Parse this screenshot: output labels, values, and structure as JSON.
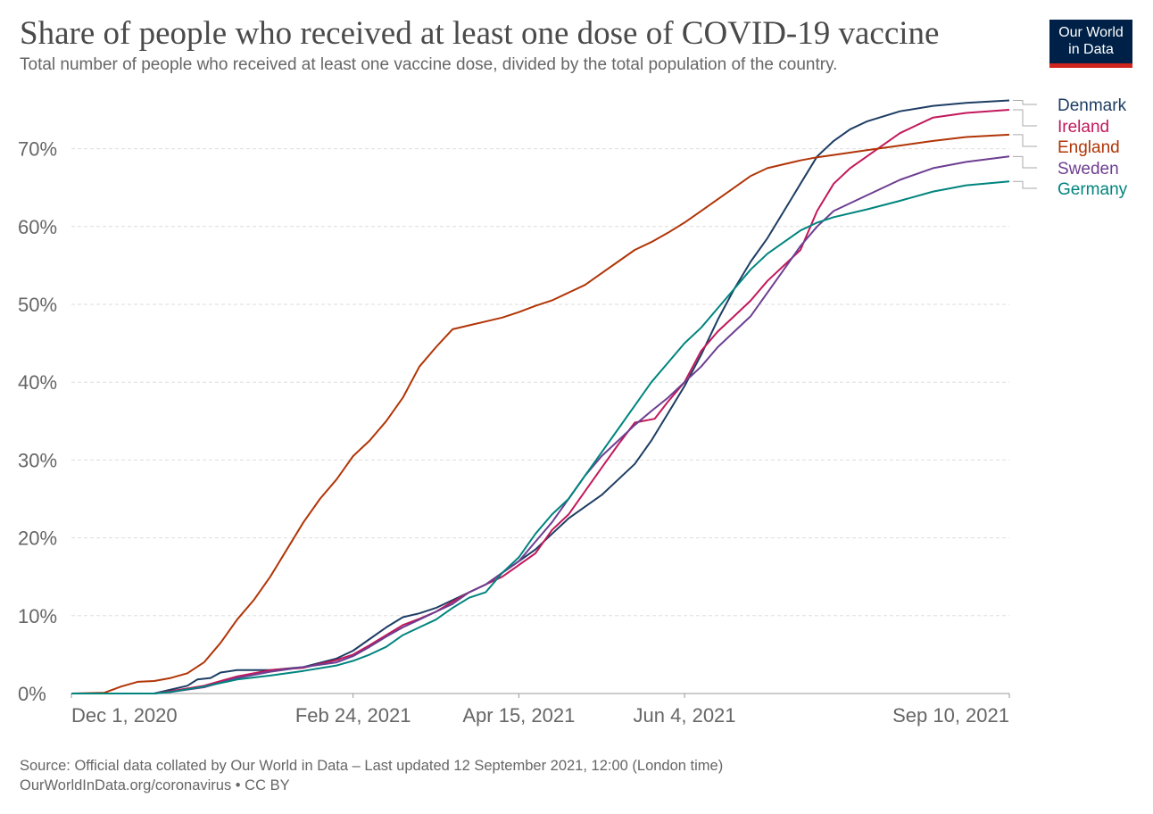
{
  "header": {
    "title": "Share of people who received at least one dose of COVID-19 vaccine",
    "subtitle": "Total number of people who received at least one vaccine dose, divided by the total population of the country."
  },
  "logo": {
    "line1": "Our World",
    "line2": "in Data",
    "bg_color": "#002147",
    "accent_color": "#ce261e"
  },
  "footer": {
    "source": "Source: Official data collated by Our World in Data – Last updated 12 September 2021, 12:00 (London time)",
    "link": "OurWorldInData.org/coronavirus • CC BY"
  },
  "chart_data": {
    "type": "line",
    "title": "Share of people who received at least one dose of COVID-19 vaccine",
    "xlabel": "",
    "ylabel": "",
    "x_unit": "days since Dec 1, 2020",
    "xlim": [
      0,
      283
    ],
    "ylim": [
      0,
      76
    ],
    "y_ticks": [
      0,
      10,
      20,
      30,
      40,
      50,
      60,
      70
    ],
    "y_tick_labels": [
      "0%",
      "10%",
      "20%",
      "30%",
      "40%",
      "50%",
      "60%",
      "70%"
    ],
    "x_ticks": [
      0,
      85,
      135,
      185,
      283
    ],
    "x_tick_labels": [
      "Dec 1, 2020",
      "Feb 24, 2021",
      "Apr 15, 2021",
      "Jun 4, 2021",
      "Sep 10, 2021"
    ],
    "grid": true,
    "legend_position": "right end labels",
    "series": [
      {
        "name": "Denmark",
        "color": "#1d3d63",
        "points": [
          [
            0,
            0
          ],
          [
            25,
            0
          ],
          [
            30,
            0.5
          ],
          [
            35,
            1.0
          ],
          [
            38,
            1.8
          ],
          [
            42,
            2.0
          ],
          [
            45,
            2.7
          ],
          [
            50,
            3.0
          ],
          [
            60,
            3.0
          ],
          [
            70,
            3.4
          ],
          [
            80,
            4.5
          ],
          [
            85,
            5.5
          ],
          [
            90,
            7.0
          ],
          [
            95,
            8.5
          ],
          [
            100,
            9.8
          ],
          [
            105,
            10.3
          ],
          [
            110,
            11.0
          ],
          [
            115,
            12.0
          ],
          [
            120,
            13.0
          ],
          [
            125,
            14.0
          ],
          [
            130,
            15.5
          ],
          [
            135,
            17.0
          ],
          [
            140,
            18.5
          ],
          [
            145,
            20.5
          ],
          [
            150,
            22.5
          ],
          [
            155,
            24.0
          ],
          [
            160,
            25.5
          ],
          [
            165,
            27.5
          ],
          [
            170,
            29.5
          ],
          [
            175,
            32.5
          ],
          [
            180,
            36.0
          ],
          [
            185,
            39.5
          ],
          [
            190,
            43.5
          ],
          [
            195,
            48.0
          ],
          [
            200,
            52.0
          ],
          [
            205,
            55.5
          ],
          [
            210,
            58.5
          ],
          [
            215,
            62.0
          ],
          [
            220,
            65.5
          ],
          [
            225,
            69.0
          ],
          [
            230,
            71.0
          ],
          [
            235,
            72.5
          ],
          [
            240,
            73.5
          ],
          [
            250,
            74.8
          ],
          [
            260,
            75.5
          ],
          [
            270,
            75.9
          ],
          [
            283,
            76.2
          ]
        ]
      },
      {
        "name": "Ireland",
        "color": "#c2185b",
        "points": [
          [
            0,
            0
          ],
          [
            25,
            0
          ],
          [
            30,
            0.3
          ],
          [
            40,
            1.0
          ],
          [
            50,
            2.2
          ],
          [
            60,
            3.0
          ],
          [
            70,
            3.3
          ],
          [
            80,
            4.3
          ],
          [
            85,
            5.0
          ],
          [
            90,
            6.2
          ],
          [
            95,
            7.5
          ],
          [
            100,
            8.8
          ],
          [
            105,
            9.6
          ],
          [
            110,
            10.5
          ],
          [
            115,
            11.8
          ],
          [
            120,
            13.0
          ],
          [
            125,
            14.0
          ],
          [
            130,
            15.0
          ],
          [
            135,
            16.5
          ],
          [
            140,
            18.0
          ],
          [
            145,
            21.0
          ],
          [
            150,
            23.0
          ],
          [
            155,
            26.0
          ],
          [
            160,
            29.0
          ],
          [
            165,
            32.0
          ],
          [
            170,
            34.8
          ],
          [
            176,
            35.3
          ],
          [
            180,
            37.5
          ],
          [
            185,
            40.0
          ],
          [
            190,
            44.0
          ],
          [
            195,
            46.5
          ],
          [
            200,
            48.5
          ],
          [
            205,
            50.5
          ],
          [
            210,
            53.0
          ],
          [
            215,
            55.0
          ],
          [
            220,
            57.0
          ],
          [
            225,
            62.0
          ],
          [
            230,
            65.5
          ],
          [
            235,
            67.5
          ],
          [
            240,
            69.0
          ],
          [
            245,
            70.5
          ],
          [
            250,
            72.0
          ],
          [
            255,
            73.0
          ],
          [
            260,
            74.0
          ],
          [
            270,
            74.6
          ],
          [
            283,
            75.0
          ]
        ]
      },
      {
        "name": "England",
        "color": "#b13507",
        "points": [
          [
            0,
            0
          ],
          [
            10,
            0.1
          ],
          [
            15,
            0.9
          ],
          [
            20,
            1.5
          ],
          [
            25,
            1.6
          ],
          [
            30,
            2.0
          ],
          [
            35,
            2.6
          ],
          [
            40,
            4.0
          ],
          [
            45,
            6.5
          ],
          [
            50,
            9.5
          ],
          [
            55,
            12.0
          ],
          [
            60,
            15.0
          ],
          [
            65,
            18.5
          ],
          [
            70,
            22.0
          ],
          [
            75,
            25.0
          ],
          [
            80,
            27.5
          ],
          [
            85,
            30.5
          ],
          [
            90,
            32.5
          ],
          [
            95,
            35.0
          ],
          [
            100,
            38.0
          ],
          [
            105,
            42.0
          ],
          [
            110,
            44.5
          ],
          [
            115,
            46.8
          ],
          [
            120,
            47.3
          ],
          [
            125,
            47.8
          ],
          [
            130,
            48.3
          ],
          [
            135,
            49.0
          ],
          [
            140,
            49.8
          ],
          [
            145,
            50.5
          ],
          [
            150,
            51.5
          ],
          [
            155,
            52.5
          ],
          [
            160,
            54.0
          ],
          [
            165,
            55.5
          ],
          [
            170,
            57.0
          ],
          [
            175,
            58.0
          ],
          [
            180,
            59.2
          ],
          [
            185,
            60.5
          ],
          [
            190,
            62.0
          ],
          [
            195,
            63.5
          ],
          [
            200,
            65.0
          ],
          [
            205,
            66.5
          ],
          [
            210,
            67.5
          ],
          [
            215,
            68.0
          ],
          [
            220,
            68.5
          ],
          [
            225,
            68.9
          ],
          [
            230,
            69.2
          ],
          [
            240,
            69.8
          ],
          [
            250,
            70.4
          ],
          [
            260,
            71.0
          ],
          [
            270,
            71.5
          ],
          [
            283,
            71.8
          ]
        ]
      },
      {
        "name": "Sweden",
        "color": "#6d3e91",
        "points": [
          [
            0,
            0
          ],
          [
            25,
            0
          ],
          [
            30,
            0.2
          ],
          [
            40,
            0.8
          ],
          [
            50,
            2.0
          ],
          [
            60,
            2.8
          ],
          [
            70,
            3.4
          ],
          [
            80,
            4.0
          ],
          [
            85,
            4.8
          ],
          [
            90,
            6.0
          ],
          [
            95,
            7.3
          ],
          [
            100,
            8.5
          ],
          [
            105,
            9.5
          ],
          [
            110,
            10.5
          ],
          [
            115,
            11.5
          ],
          [
            120,
            13.0
          ],
          [
            125,
            14.0
          ],
          [
            130,
            15.5
          ],
          [
            135,
            17.0
          ],
          [
            140,
            19.5
          ],
          [
            145,
            22.0
          ],
          [
            150,
            25.0
          ],
          [
            155,
            28.0
          ],
          [
            160,
            30.5
          ],
          [
            165,
            32.5
          ],
          [
            170,
            34.5
          ],
          [
            175,
            36.3
          ],
          [
            180,
            38.0
          ],
          [
            185,
            40.0
          ],
          [
            190,
            42.0
          ],
          [
            195,
            44.5
          ],
          [
            200,
            46.5
          ],
          [
            205,
            48.5
          ],
          [
            210,
            51.5
          ],
          [
            215,
            54.5
          ],
          [
            220,
            57.5
          ],
          [
            225,
            60.0
          ],
          [
            230,
            62.0
          ],
          [
            240,
            64.0
          ],
          [
            250,
            66.0
          ],
          [
            260,
            67.5
          ],
          [
            270,
            68.3
          ],
          [
            283,
            69.0
          ]
        ]
      },
      {
        "name": "Germany",
        "color": "#00847e",
        "points": [
          [
            0,
            0
          ],
          [
            25,
            0
          ],
          [
            30,
            0.2
          ],
          [
            40,
            0.9
          ],
          [
            50,
            1.8
          ],
          [
            60,
            2.3
          ],
          [
            70,
            2.9
          ],
          [
            80,
            3.6
          ],
          [
            85,
            4.2
          ],
          [
            90,
            5.0
          ],
          [
            95,
            6.0
          ],
          [
            100,
            7.5
          ],
          [
            105,
            8.5
          ],
          [
            110,
            9.5
          ],
          [
            115,
            11.0
          ],
          [
            120,
            12.3
          ],
          [
            125,
            13.0
          ],
          [
            130,
            15.5
          ],
          [
            135,
            17.5
          ],
          [
            140,
            20.5
          ],
          [
            145,
            23.0
          ],
          [
            150,
            25.0
          ],
          [
            155,
            28.0
          ],
          [
            160,
            31.0
          ],
          [
            165,
            34.0
          ],
          [
            170,
            37.0
          ],
          [
            175,
            40.0
          ],
          [
            180,
            42.5
          ],
          [
            185,
            45.0
          ],
          [
            190,
            47.0
          ],
          [
            195,
            49.5
          ],
          [
            200,
            52.0
          ],
          [
            205,
            54.5
          ],
          [
            210,
            56.5
          ],
          [
            215,
            58.0
          ],
          [
            220,
            59.5
          ],
          [
            225,
            60.5
          ],
          [
            230,
            61.2
          ],
          [
            240,
            62.2
          ],
          [
            250,
            63.3
          ],
          [
            260,
            64.5
          ],
          [
            270,
            65.3
          ],
          [
            283,
            65.8
          ]
        ]
      }
    ]
  }
}
